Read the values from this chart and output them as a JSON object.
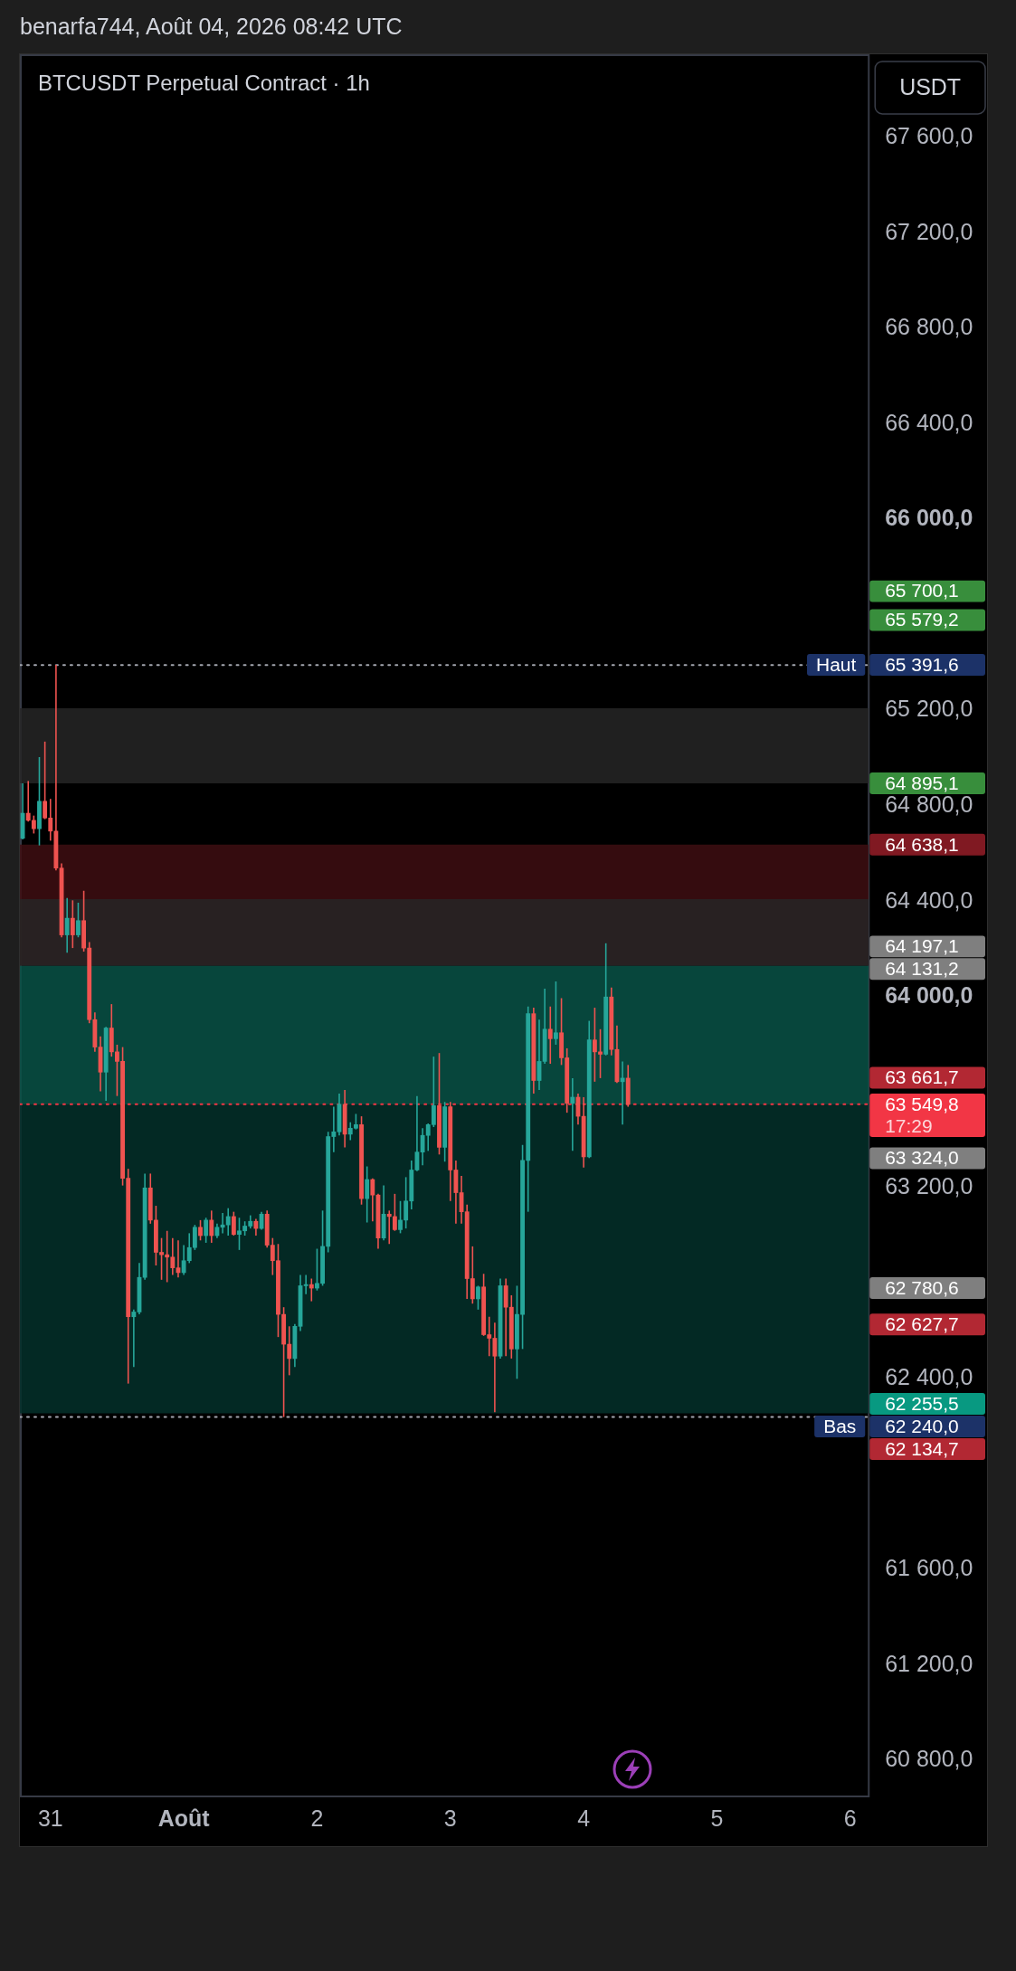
{
  "chart_data": {
    "type": "candlestick",
    "title": "BTCUSDT Perpetual Contract · 1h",
    "ylabel": "USDT",
    "annotations": [
      "benarfa744, Août 04, 2026 08:42 UTC",
      "17:29"
    ],
    "x": [
      "2026-07-30T19:00",
      "2026-07-30T20:00",
      "2026-07-30T21:00",
      "2026-07-30T22:00",
      "2026-07-30T23:00",
      "2026-07-31T00:00",
      "2026-07-31T01:00",
      "2026-07-31T02:00",
      "2026-07-31T03:00",
      "2026-07-31T04:00",
      "2026-07-31T05:00",
      "2026-07-31T06:00",
      "2026-07-31T07:00",
      "2026-07-31T08:00",
      "2026-07-31T09:00",
      "2026-07-31T10:00",
      "2026-07-31T11:00",
      "2026-07-31T12:00",
      "2026-07-31T13:00",
      "2026-07-31T14:00",
      "2026-07-31T15:00",
      "2026-07-31T16:00",
      "2026-07-31T17:00",
      "2026-07-31T18:00",
      "2026-07-31T19:00",
      "2026-07-31T20:00",
      "2026-07-31T21:00",
      "2026-07-31T22:00",
      "2026-07-31T23:00",
      "2026-08-01T00:00",
      "2026-08-01T01:00",
      "2026-08-01T02:00",
      "2026-08-01T03:00",
      "2026-08-01T04:00",
      "2026-08-01T05:00",
      "2026-08-01T06:00",
      "2026-08-01T07:00",
      "2026-08-01T08:00",
      "2026-08-01T09:00",
      "2026-08-01T10:00",
      "2026-08-01T11:00",
      "2026-08-01T12:00",
      "2026-08-01T13:00",
      "2026-08-01T14:00",
      "2026-08-01T15:00",
      "2026-08-01T16:00",
      "2026-08-01T17:00",
      "2026-08-01T18:00",
      "2026-08-01T19:00",
      "2026-08-01T20:00",
      "2026-08-01T21:00",
      "2026-08-01T22:00",
      "2026-08-01T23:00",
      "2026-08-02T00:00",
      "2026-08-02T01:00",
      "2026-08-02T02:00",
      "2026-08-02T03:00",
      "2026-08-02T04:00",
      "2026-08-02T05:00",
      "2026-08-02T06:00",
      "2026-08-02T07:00",
      "2026-08-02T08:00",
      "2026-08-02T09:00",
      "2026-08-02T10:00",
      "2026-08-02T11:00",
      "2026-08-02T12:00",
      "2026-08-02T13:00",
      "2026-08-02T14:00",
      "2026-08-02T15:00",
      "2026-08-02T16:00",
      "2026-08-02T17:00",
      "2026-08-02T18:00",
      "2026-08-02T19:00",
      "2026-08-02T20:00",
      "2026-08-02T21:00",
      "2026-08-02T22:00",
      "2026-08-02T23:00",
      "2026-08-03T00:00",
      "2026-08-03T01:00",
      "2026-08-03T02:00",
      "2026-08-03T03:00",
      "2026-08-03T04:00",
      "2026-08-03T05:00",
      "2026-08-03T06:00",
      "2026-08-03T07:00",
      "2026-08-03T08:00",
      "2026-08-03T09:00",
      "2026-08-03T10:00",
      "2026-08-03T11:00",
      "2026-08-03T12:00",
      "2026-08-03T13:00",
      "2026-08-03T14:00",
      "2026-08-03T15:00",
      "2026-08-03T16:00",
      "2026-08-03T17:00",
      "2026-08-03T18:00",
      "2026-08-03T19:00",
      "2026-08-03T20:00",
      "2026-08-03T21:00",
      "2026-08-03T22:00",
      "2026-08-03T23:00",
      "2026-08-04T00:00",
      "2026-08-04T01:00",
      "2026-08-04T02:00",
      "2026-08-04T03:00",
      "2026-08-04T04:00",
      "2026-08-04T05:00",
      "2026-08-04T06:00",
      "2026-08-04T07:00",
      "2026-08-04T08:00"
    ],
    "ohlc": [
      [
        64665,
        64895,
        64660,
        64770
      ],
      [
        64770,
        64905,
        64735,
        64740
      ],
      [
        64740,
        64760,
        64685,
        64705
      ],
      [
        64705,
        65005,
        64635,
        64820
      ],
      [
        64820,
        65070,
        64745,
        64750
      ],
      [
        64750,
        64830,
        64655,
        64695
      ],
      [
        64695,
        65391.6,
        64530,
        64540
      ],
      [
        64540,
        64560,
        64250,
        64260
      ],
      [
        64260,
        64415,
        64185,
        64330
      ],
      [
        64330,
        64405,
        64205,
        64260
      ],
      [
        64260,
        64395,
        64250,
        64320
      ],
      [
        64320,
        64445,
        64190,
        64205
      ],
      [
        64205,
        64230,
        63890,
        63905
      ],
      [
        63905,
        63935,
        63770,
        63790
      ],
      [
        63790,
        63835,
        63605,
        63685
      ],
      [
        63685,
        63875,
        63565,
        63870
      ],
      [
        63870,
        63970,
        63750,
        63770
      ],
      [
        63770,
        63800,
        63585,
        63730
      ],
      [
        63730,
        63790,
        63210,
        63240
      ],
      [
        63240,
        63280,
        62380,
        62660
      ],
      [
        62660,
        62690,
        62450,
        62680
      ],
      [
        62680,
        62885,
        62670,
        62825
      ],
      [
        62825,
        63260,
        62815,
        63200
      ],
      [
        63200,
        63260,
        63050,
        63065
      ],
      [
        63065,
        63125,
        62875,
        62930
      ],
      [
        62930,
        62990,
        62815,
        62920
      ],
      [
        62920,
        63020,
        62805,
        62910
      ],
      [
        62910,
        62990,
        62835,
        62865
      ],
      [
        62865,
        62980,
        62825,
        62845
      ],
      [
        62845,
        62960,
        62835,
        62895
      ],
      [
        62895,
        63010,
        62885,
        62950
      ],
      [
        62950,
        63045,
        62940,
        63035
      ],
      [
        63035,
        63065,
        62980,
        63000
      ],
      [
        63000,
        63075,
        62970,
        63065
      ],
      [
        63065,
        63105,
        62970,
        63000
      ],
      [
        63000,
        63050,
        62990,
        63035
      ],
      [
        63035,
        63095,
        63010,
        63045
      ],
      [
        63045,
        63115,
        63000,
        63080
      ],
      [
        63080,
        63100,
        63000,
        63005
      ],
      [
        63005,
        63075,
        62940,
        63020
      ],
      [
        63020,
        63060,
        63000,
        63040
      ],
      [
        63040,
        63085,
        63030,
        63060
      ],
      [
        63060,
        63070,
        63000,
        63030
      ],
      [
        63030,
        63100,
        63025,
        63090
      ],
      [
        63090,
        63105,
        62950,
        62960
      ],
      [
        62960,
        62990,
        62835,
        62895
      ],
      [
        62895,
        62965,
        62575,
        62670
      ],
      [
        62670,
        62700,
        62240,
        62545
      ],
      [
        62545,
        62620,
        62415,
        62485
      ],
      [
        62485,
        62630,
        62450,
        62620
      ],
      [
        62620,
        62835,
        62600,
        62790
      ],
      [
        62790,
        62835,
        62755,
        62795
      ],
      [
        62795,
        62820,
        62725,
        62780
      ],
      [
        62780,
        62945,
        62770,
        62800
      ],
      [
        62800,
        63105,
        62790,
        62955
      ],
      [
        62955,
        63435,
        62930,
        63415
      ],
      [
        63415,
        63540,
        63350,
        63435
      ],
      [
        63435,
        63595,
        63420,
        63550
      ],
      [
        63550,
        63610,
        63370,
        63425
      ],
      [
        63425,
        63475,
        63400,
        63450
      ],
      [
        63450,
        63510,
        63445,
        63465
      ],
      [
        63465,
        63500,
        63130,
        63155
      ],
      [
        63155,
        63290,
        63055,
        63235
      ],
      [
        63235,
        63240,
        63060,
        63170
      ],
      [
        63170,
        63175,
        62945,
        62990
      ],
      [
        62990,
        63210,
        62980,
        63090
      ],
      [
        63090,
        63105,
        62965,
        63080
      ],
      [
        63080,
        63175,
        63020,
        63025
      ],
      [
        63025,
        63145,
        63010,
        63065
      ],
      [
        63065,
        63245,
        63030,
        63145
      ],
      [
        63145,
        63315,
        63110,
        63275
      ],
      [
        63275,
        63585,
        63270,
        63350
      ],
      [
        63350,
        63450,
        63295,
        63420
      ],
      [
        63420,
        63470,
        63355,
        63465
      ],
      [
        63465,
        63750,
        63455,
        63545
      ],
      [
        63545,
        63765,
        63340,
        63370
      ],
      [
        63370,
        63560,
        63310,
        63540
      ],
      [
        63540,
        63560,
        63145,
        63275
      ],
      [
        63275,
        63315,
        63050,
        63180
      ],
      [
        63180,
        63250,
        63050,
        63100
      ],
      [
        63100,
        63130,
        62735,
        62820
      ],
      [
        62820,
        62955,
        62715,
        62735
      ],
      [
        62735,
        62790,
        62690,
        62785
      ],
      [
        62785,
        62840,
        62580,
        62585
      ],
      [
        62585,
        62660,
        62495,
        62570
      ],
      [
        62570,
        62635,
        62260,
        62495
      ],
      [
        62495,
        62820,
        62485,
        62790
      ],
      [
        62790,
        62820,
        62495,
        62700
      ],
      [
        62700,
        62750,
        62485,
        62525
      ],
      [
        62525,
        62790,
        62400,
        62670
      ],
      [
        62670,
        63380,
        62525,
        63315
      ],
      [
        63315,
        63960,
        63100,
        63930
      ],
      [
        63930,
        63955,
        63595,
        63650
      ],
      [
        63650,
        63905,
        63610,
        63730
      ],
      [
        63730,
        64035,
        63720,
        63865
      ],
      [
        63865,
        63960,
        63720,
        63825
      ],
      [
        63825,
        64065,
        63800,
        63850
      ],
      [
        63850,
        63995,
        63715,
        63745
      ],
      [
        63745,
        63785,
        63515,
        63555
      ],
      [
        63555,
        63660,
        63355,
        63580
      ],
      [
        63580,
        63595,
        63465,
        63500
      ],
      [
        63500,
        63580,
        63285,
        63330
      ],
      [
        63330,
        63900,
        63325,
        63820
      ],
      [
        63820,
        63955,
        63645,
        63770
      ],
      [
        63770,
        63865,
        63660,
        63760
      ],
      [
        63760,
        64225,
        63755,
        64000
      ],
      [
        64000,
        64040,
        63755,
        63780
      ],
      [
        63780,
        63880,
        63640,
        63645
      ],
      [
        63645,
        63730,
        63465,
        63660
      ],
      [
        63660,
        63715,
        63540,
        63549.8
      ]
    ],
    "colors": [
      "#26a69a",
      "#ef5350",
      "#ef5350",
      "#26a69a",
      "#ef5350",
      "#ef5350",
      "#ef5350",
      "#ef5350",
      "#26a69a",
      "#ef5350",
      "#26a69a",
      "#ef5350",
      "#ef5350",
      "#ef5350",
      "#ef5350",
      "#26a69a",
      "#ef5350",
      "#ef5350",
      "#ef5350",
      "#ef5350",
      "#26a69a",
      "#26a69a",
      "#26a69a",
      "#ef5350",
      "#ef5350",
      "#ef5350",
      "#ef5350",
      "#ef5350",
      "#ef5350",
      "#26a69a",
      "#26a69a",
      "#26a69a",
      "#ef5350",
      "#26a69a",
      "#ef5350",
      "#26a69a",
      "#26a69a",
      "#26a69a",
      "#ef5350",
      "#26a69a",
      "#26a69a",
      "#26a69a",
      "#ef5350",
      "#26a69a",
      "#ef5350",
      "#ef5350",
      "#ef5350",
      "#ef5350",
      "#ef5350",
      "#26a69a",
      "#26a69a",
      "#26a69a",
      "#ef5350",
      "#26a69a",
      "#26a69a",
      "#26a69a",
      "#26a69a",
      "#26a69a",
      "#ef5350",
      "#26a69a",
      "#26a69a",
      "#ef5350",
      "#26a69a",
      "#ef5350",
      "#ef5350",
      "#26a69a",
      "#ef5350",
      "#ef5350",
      "#26a69a",
      "#26a69a",
      "#26a69a",
      "#26a69a",
      "#26a69a",
      "#26a69a",
      "#26a69a",
      "#ef5350",
      "#26a69a",
      "#ef5350",
      "#ef5350",
      "#ef5350",
      "#ef5350",
      "#ef5350",
      "#26a69a",
      "#ef5350",
      "#ef5350",
      "#ef5350",
      "#26a69a",
      "#ef5350",
      "#ef5350",
      "#26a69a",
      "#26a69a",
      "#26a69a",
      "#ef5350",
      "#26a69a",
      "#26a69a",
      "#ef5350",
      "#26a69a",
      "#ef5350",
      "#ef5350",
      "#26a69a",
      "#ef5350",
      "#ef5350",
      "#26a69a",
      "#ef5350",
      "#ef5350",
      "#26a69a",
      "#ef5350",
      "#ef5350",
      "#26a69a",
      "#ef5350"
    ],
    "xlim": [
      "2026-07-30T18:30",
      "2026-08-06T03:20"
    ],
    "xticks": [
      {
        "value": "2026-07-31",
        "label": "31"
      },
      {
        "value": "2026-08-01",
        "label": "Août"
      },
      {
        "value": "2026-08-02",
        "label": "2"
      },
      {
        "value": "2026-08-03",
        "label": "3"
      },
      {
        "value": "2026-08-04",
        "label": "4"
      },
      {
        "value": "2026-08-05",
        "label": "5"
      },
      {
        "value": "2026-08-06",
        "label": "6"
      }
    ],
    "ylim": [
      60650,
      67950
    ],
    "yticks": [
      {
        "value": 67600,
        "label": "67 600,0"
      },
      {
        "value": 67200,
        "label": "67 200,0"
      },
      {
        "value": 66800,
        "label": "66 800,0"
      },
      {
        "value": 66400,
        "label": "66 400,0"
      },
      {
        "value": 66000,
        "label": "66 000,0"
      },
      {
        "value": 65700.1,
        "label": "65 700,1"
      },
      {
        "value": 65579.2,
        "label": "65 579,2"
      },
      {
        "value": 65391.6,
        "label": "65 391,6"
      },
      {
        "value": 65200,
        "label": "65 200,0"
      },
      {
        "value": 64895.1,
        "label": "64 895,1"
      },
      {
        "value": 64800,
        "label": "64 800,0"
      },
      {
        "value": 64638.1,
        "label": "64 638,1"
      },
      {
        "value": 64400,
        "label": "64 400,0"
      },
      {
        "value": 64197.1,
        "label": "64 197,1"
      },
      {
        "value": 64131.2,
        "label": "64 131,2"
      },
      {
        "value": 64000,
        "label": "64 000,0"
      },
      {
        "value": 63661.7,
        "label": "63 661,7"
      },
      {
        "value": 63549.8,
        "label": "63 549,8"
      },
      {
        "value": 63324.0,
        "label": "63 324,0"
      },
      {
        "value": 63200,
        "label": "63 200,0"
      },
      {
        "value": 62780.6,
        "label": "62 780,6"
      },
      {
        "value": 62627.7,
        "label": "62 627,7"
      },
      {
        "value": 62400,
        "label": "62 400,0"
      },
      {
        "value": 62255.5,
        "label": "62 255,5"
      },
      {
        "value": 62240.0,
        "label": "62 240,0"
      },
      {
        "value": 62134.7,
        "label": "62 134,7"
      },
      {
        "value": 61600,
        "label": "61 600,0"
      },
      {
        "value": 61200,
        "label": "61 200,0"
      },
      {
        "value": 60800,
        "label": "60 800,0"
      }
    ],
    "bands": [
      {
        "axis": "y",
        "from": 64131.2,
        "to": 64638.1,
        "color": "#3e0e12"
      },
      {
        "axis": "y",
        "from": 63549.8,
        "to": 64131.2,
        "color": "#085246"
      },
      {
        "axis": "y",
        "from": 62255.5,
        "to": 63549.8,
        "color": "#03302a"
      },
      {
        "axis": "y",
        "from": 64895.1,
        "to": 65210,
        "color": "#262626"
      },
      {
        "axis": "y",
        "from": 64131.2,
        "to": 64410,
        "color": "#262626"
      }
    ],
    "ref_lines": [
      {
        "axis": "y",
        "value": 65391.6,
        "label": "Haut",
        "color": "#a3a6af",
        "line_style": "dotted"
      },
      {
        "axis": "y",
        "value": 63549.8,
        "color": "#f23645",
        "line_style": "dotted"
      },
      {
        "axis": "y",
        "value": 62240.0,
        "label": "Bas",
        "color": "#a3a6af",
        "line_style": "dotted"
      }
    ]
  }
}
